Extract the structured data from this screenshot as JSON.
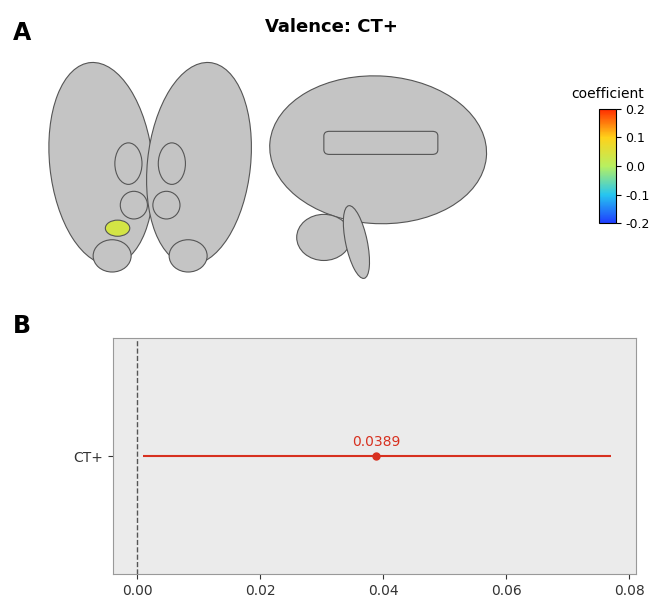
{
  "title": "Valence: CT+",
  "chart_data": [
    {
      "type": "brain_map",
      "panel_label": "A",
      "region_value": 0.0389,
      "colorbar": {
        "label": "coefficient",
        "range": [
          -0.2,
          0.2
        ],
        "ticks": [
          0.2,
          0.1,
          0.0,
          -0.1,
          -0.2
        ]
      }
    },
    {
      "type": "interval",
      "panel_label": "B",
      "categories": [
        "CT+"
      ],
      "values": [
        0.0389
      ],
      "value_labels": [
        "0.0389"
      ],
      "lower": [
        0.001
      ],
      "upper": [
        0.077
      ],
      "reference_line": 0,
      "color": "#d7301f",
      "data_labels": true,
      "line_style": "dashed",
      "xlim": [
        -0.004,
        0.081
      ],
      "xticks": [
        {
          "value": 0,
          "label": "0.00"
        },
        0.02,
        0.04,
        0.06,
        0.08
      ]
    }
  ]
}
